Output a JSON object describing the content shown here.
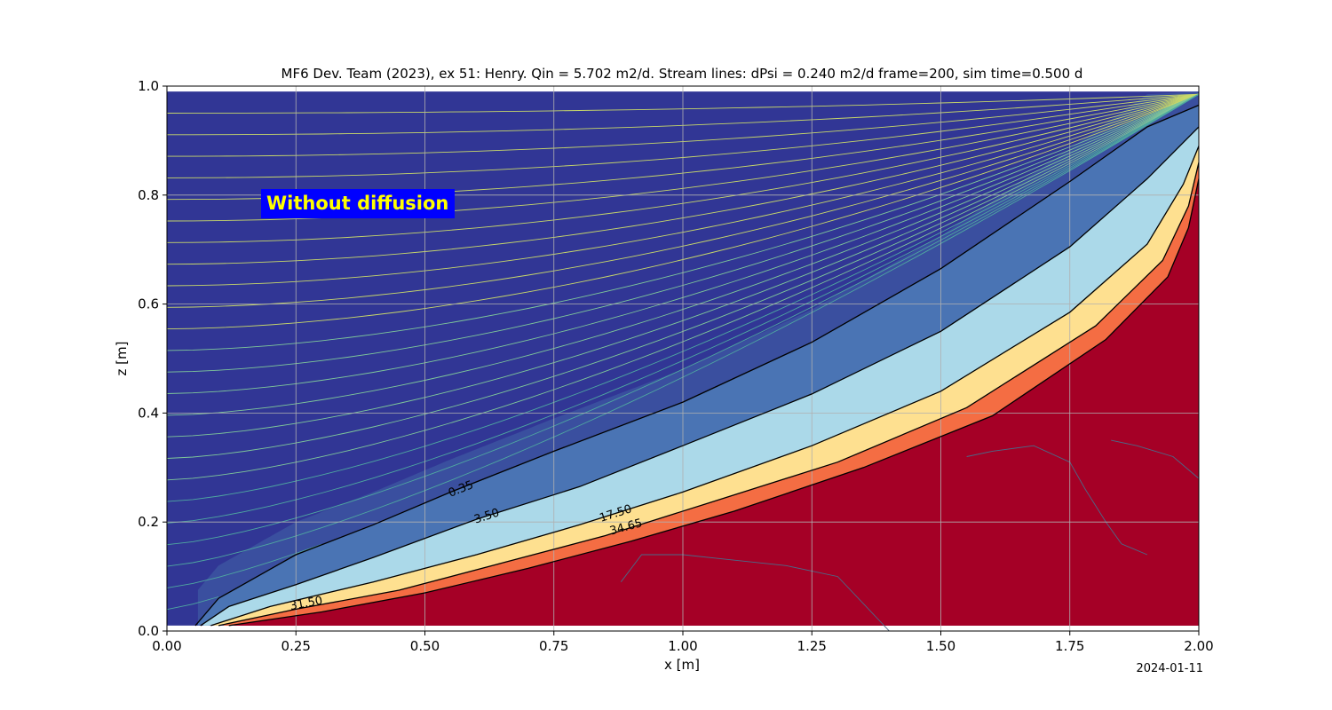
{
  "chart_data": {
    "type": "contour",
    "title": "MF6 Dev. Team (2023), ex 51: Henry. Qin = 5.702 m2/d. Stream lines: dPsi = 0.240 m2/d frame=200, sim time=0.500 d",
    "xlabel": "x [m]",
    "ylabel": "z [m]",
    "xlim": [
      0,
      2
    ],
    "ylim": [
      0,
      1
    ],
    "xticks": [
      "0.00",
      "0.25",
      "0.50",
      "0.75",
      "1.00",
      "1.25",
      "1.50",
      "1.75",
      "2.00"
    ],
    "yticks": [
      "0.0",
      "0.2",
      "0.4",
      "0.6",
      "0.8",
      "1.0"
    ],
    "grid": true,
    "colormap": "RdYlBu_r",
    "colors": {
      "fresh": "#313695",
      "salt": "#a50026",
      "grid": "#b0b0b0",
      "contour": "#000000",
      "streamline": "#b8d86a",
      "annotation_bg": "#0000ff",
      "annotation_text": "#ffff00"
    },
    "annotation": "Without diffusion",
    "date_stamp": "2024-01-11",
    "concentration_contours": [
      {
        "level": "0.35",
        "points": [
          [
            0.055,
            0.01
          ],
          [
            0.1,
            0.06
          ],
          [
            0.25,
            0.14
          ],
          [
            0.4,
            0.195
          ],
          [
            0.55,
            0.255
          ],
          [
            0.75,
            0.33
          ],
          [
            1.0,
            0.42
          ],
          [
            1.25,
            0.53
          ],
          [
            1.5,
            0.665
          ],
          [
            1.75,
            0.825
          ],
          [
            1.9,
            0.925
          ],
          [
            2.0,
            0.965
          ]
        ],
        "label_at": [
          0.57,
          0.26
        ]
      },
      {
        "level": "3.50",
        "points": [
          [
            0.065,
            0.01
          ],
          [
            0.12,
            0.045
          ],
          [
            0.25,
            0.085
          ],
          [
            0.4,
            0.135
          ],
          [
            0.6,
            0.205
          ],
          [
            0.8,
            0.265
          ],
          [
            1.0,
            0.34
          ],
          [
            1.25,
            0.435
          ],
          [
            1.5,
            0.55
          ],
          [
            1.75,
            0.705
          ],
          [
            1.9,
            0.83
          ],
          [
            2.0,
            0.925
          ]
        ],
        "label_at": [
          0.62,
          0.21
        ]
      },
      {
        "level": "17.50",
        "points": [
          [
            0.085,
            0.01
          ],
          [
            0.2,
            0.045
          ],
          [
            0.4,
            0.09
          ],
          [
            0.6,
            0.14
          ],
          [
            0.8,
            0.195
          ],
          [
            1.0,
            0.255
          ],
          [
            1.25,
            0.34
          ],
          [
            1.5,
            0.44
          ],
          [
            1.75,
            0.585
          ],
          [
            1.9,
            0.71
          ],
          [
            1.97,
            0.82
          ],
          [
            2.0,
            0.89
          ]
        ],
        "label_at": [
          0.87,
          0.215
        ]
      },
      {
        "level": "31.50",
        "points": [
          [
            0.1,
            0.01
          ],
          [
            0.25,
            0.04
          ],
          [
            0.45,
            0.075
          ],
          [
            0.65,
            0.125
          ],
          [
            0.85,
            0.175
          ],
          [
            1.05,
            0.235
          ],
          [
            1.3,
            0.31
          ],
          [
            1.55,
            0.41
          ],
          [
            1.8,
            0.56
          ],
          [
            1.93,
            0.68
          ],
          [
            1.98,
            0.78
          ],
          [
            2.0,
            0.86
          ]
        ],
        "label_at": [
          0.27,
          0.05
        ]
      },
      {
        "level": "34.65",
        "points": [
          [
            0.12,
            0.01
          ],
          [
            0.3,
            0.035
          ],
          [
            0.5,
            0.07
          ],
          [
            0.7,
            0.115
          ],
          [
            0.9,
            0.165
          ],
          [
            1.1,
            0.22
          ],
          [
            1.35,
            0.3
          ],
          [
            1.6,
            0.395
          ],
          [
            1.82,
            0.535
          ],
          [
            1.94,
            0.65
          ],
          [
            1.98,
            0.74
          ],
          [
            2.0,
            0.83
          ]
        ],
        "label_at": [
          0.89,
          0.19
        ]
      }
    ],
    "stream_psi_count": 24
  }
}
